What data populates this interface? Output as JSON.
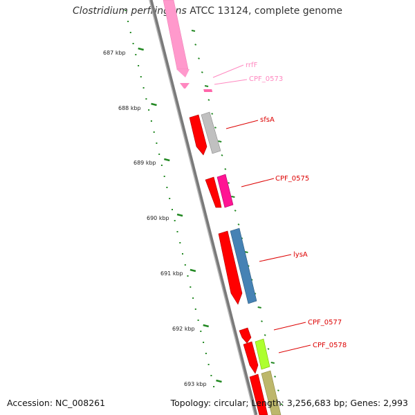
{
  "title": {
    "species": "Clostridium perfringens",
    "strain_suffix": " ATCC 13124, complete genome"
  },
  "footer": {
    "accession": "Accession: NC_008261",
    "summary": "Topology: circular; Length: 3,256,683 bp; Genes: 2,993"
  },
  "axis_ticks": [
    "687 kbp",
    "688 kbp",
    "689 kbp",
    "690 kbp",
    "691 kbp",
    "692 kbp",
    "693 kbp"
  ],
  "gene_labels": [
    {
      "name": "rrfF",
      "color": "#ff88c0"
    },
    {
      "name": "CPF_0573",
      "color": "#ff88c0"
    },
    {
      "name": "sfsA",
      "color": "#dd0000"
    },
    {
      "name": "CPF_0575",
      "color": "#dd0000"
    },
    {
      "name": "lysA",
      "color": "#dd0000"
    },
    {
      "name": "CPF_0577",
      "color": "#dd0000"
    },
    {
      "name": "CPF_0578",
      "color": "#dd0000"
    }
  ],
  "colors": {
    "backbone": "#808080",
    "tick": "#228822",
    "cds_red": "#ff0000",
    "rrna_pink": "#ff99cc",
    "grey_gene": "#c0c0c0",
    "magenta_gene": "#ff1493",
    "blue_gene": "#4682b4",
    "lime_gene": "#adff2f",
    "khaki_gene": "#bdb76b"
  }
}
